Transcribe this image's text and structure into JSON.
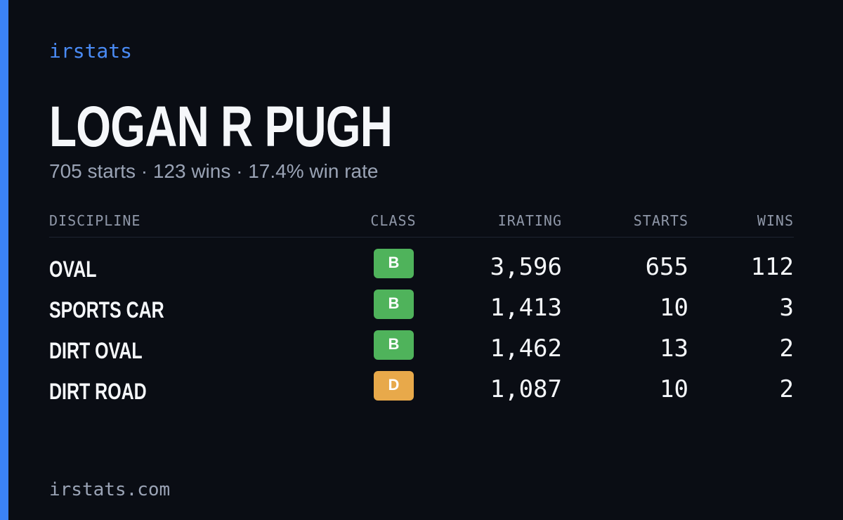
{
  "brand": "irstats",
  "driver": {
    "name": "LOGAN R PUGH",
    "summary": "705 starts · 123 wins · 17.4% win rate"
  },
  "table": {
    "headers": [
      "DISCIPLINE",
      "CLASS",
      "IRATING",
      "STARTS",
      "WINS"
    ],
    "rows": [
      {
        "discipline": "OVAL",
        "class": "B",
        "class_color": "#4fb35b",
        "irating": "3,596",
        "starts": "655",
        "wins": "112"
      },
      {
        "discipline": "SPORTS CAR",
        "class": "B",
        "class_color": "#4fb35b",
        "irating": "1,413",
        "starts": "10",
        "wins": "3"
      },
      {
        "discipline": "DIRT OVAL",
        "class": "B",
        "class_color": "#4fb35b",
        "irating": "1,462",
        "starts": "13",
        "wins": "2"
      },
      {
        "discipline": "DIRT ROAD",
        "class": "D",
        "class_color": "#e8a94a",
        "irating": "1,087",
        "starts": "10",
        "wins": "2"
      }
    ]
  },
  "footer": "irstats.com"
}
